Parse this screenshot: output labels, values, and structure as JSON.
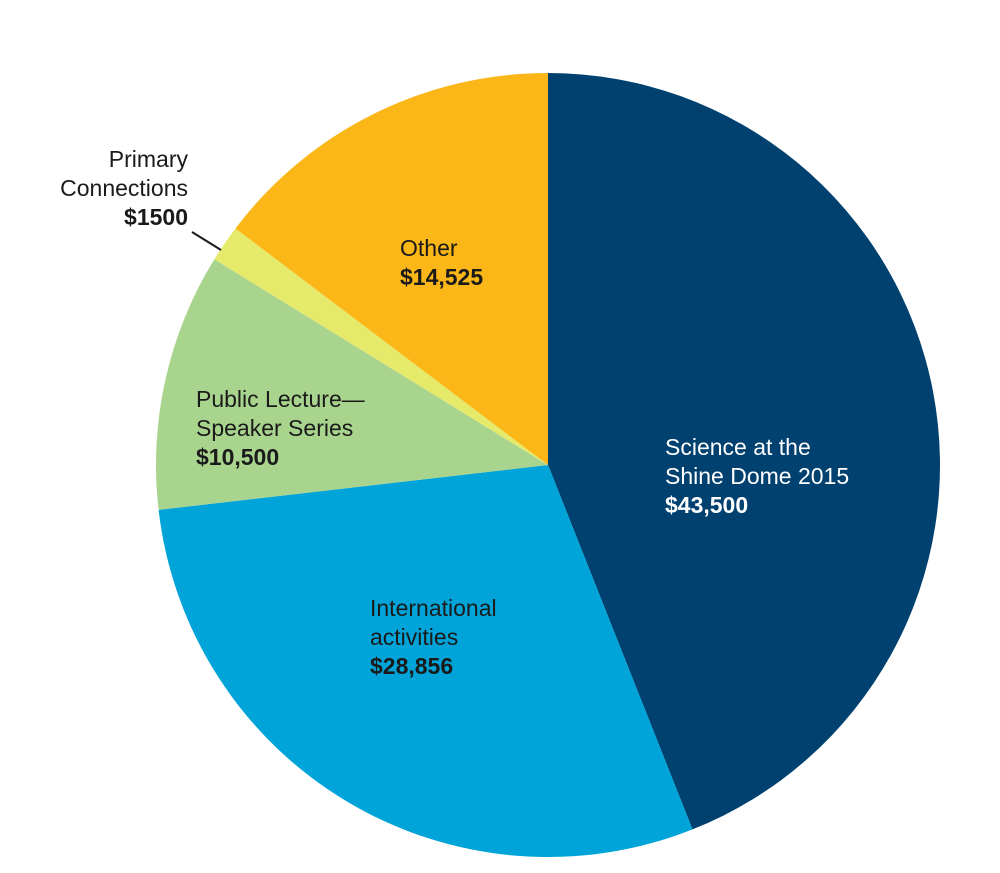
{
  "chart_data": {
    "type": "pie",
    "start": "12 o'clock",
    "direction": "clockwise",
    "slices": [
      {
        "name_lines": [
          "Science at the",
          "Shine Dome 2015"
        ],
        "value_label": "$43,500",
        "value": 43500,
        "color": "#00416f",
        "text_color": "#ffffff"
      },
      {
        "name_lines": [
          "International",
          "activities"
        ],
        "value_label": "$28,856",
        "value": 28856,
        "color": "#00a4d9",
        "text_color": "#1a1a1a"
      },
      {
        "name_lines": [
          "Public Lecture—",
          "Speaker Series"
        ],
        "value_label": "$10,500",
        "value": 10500,
        "color": "#a9d48e",
        "text_color": "#1a1a1a"
      },
      {
        "name_lines": [
          "Primary",
          "Connections"
        ],
        "value_label": "$1500",
        "value": 1500,
        "color": "#e6ea6b",
        "text_color": "#1a1a1a"
      },
      {
        "name_lines": [
          "Other"
        ],
        "value_label": "$14,525",
        "value": 14525,
        "color": "#fbb617",
        "text_color": "#1a1a1a"
      }
    ]
  }
}
